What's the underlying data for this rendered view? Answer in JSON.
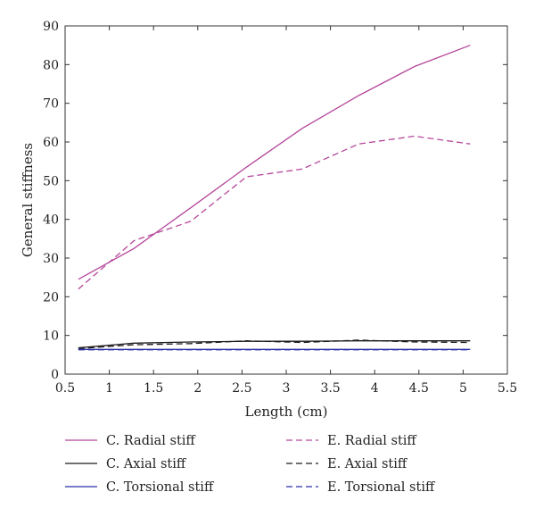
{
  "chart_data": {
    "type": "line",
    "title": "",
    "xlabel": "Length (cm)",
    "ylabel": "General stiffness",
    "xlim": [
      0.5,
      5.5
    ],
    "ylim": [
      0,
      90
    ],
    "x_ticks": [
      "0.5",
      "1",
      "1.5",
      "2",
      "2.5",
      "3",
      "3.5",
      "4",
      "4.5",
      "5",
      "5.5"
    ],
    "y_ticks": [
      "0",
      "10",
      "20",
      "30",
      "40",
      "50",
      "60",
      "70",
      "80",
      "90"
    ],
    "grid": false,
    "legend_position": "bottom",
    "series": [
      {
        "name": "C. Radial stiff",
        "color": "#b5479b",
        "dash": "solid",
        "x": [
          0.65,
          1.28,
          1.92,
          2.55,
          3.18,
          3.82,
          4.45,
          5.08
        ],
        "y": [
          24.5,
          32.5,
          43,
          53.5,
          63.5,
          72,
          79.5,
          85
        ]
      },
      {
        "name": "E. Radial stiff",
        "color": "#b5479b",
        "dash": "dashed",
        "x": [
          0.65,
          1.28,
          1.92,
          2.55,
          3.18,
          3.82,
          4.45,
          5.08
        ],
        "y": [
          22,
          34.5,
          39.5,
          51,
          53,
          59.5,
          61.5,
          59.5
        ]
      },
      {
        "name": "C. Axial stiff",
        "color": "#1a1a1a",
        "dash": "solid",
        "x": [
          0.65,
          1.28,
          1.92,
          2.55,
          3.18,
          3.82,
          4.45,
          5.08
        ],
        "y": [
          6.8,
          8.0,
          8.3,
          8.5,
          8.5,
          8.6,
          8.6,
          8.6
        ]
      },
      {
        "name": "E. Axial stiff",
        "color": "#1a1a1a",
        "dash": "dashed",
        "x": [
          0.65,
          1.28,
          1.92,
          2.55,
          3.18,
          3.82,
          4.45,
          5.08
        ],
        "y": [
          6.6,
          7.6,
          7.9,
          8.6,
          8.2,
          8.8,
          8.3,
          8.2
        ]
      },
      {
        "name": "C. Torsional stiff",
        "color": "#2b2fa8",
        "dash": "solid",
        "x": [
          0.65,
          1.28,
          1.92,
          2.55,
          3.18,
          3.82,
          4.45,
          5.08
        ],
        "y": [
          6.4,
          6.4,
          6.4,
          6.4,
          6.4,
          6.4,
          6.4,
          6.4
        ]
      },
      {
        "name": "E. Torsional stiff",
        "color": "#2b2fa8",
        "dash": "dashed",
        "x": [
          0.65,
          1.28,
          1.92,
          2.55,
          3.18,
          3.82,
          4.45,
          5.08
        ],
        "y": [
          6.3,
          6.3,
          6.3,
          6.3,
          6.3,
          6.3,
          6.3,
          6.3
        ]
      }
    ]
  }
}
